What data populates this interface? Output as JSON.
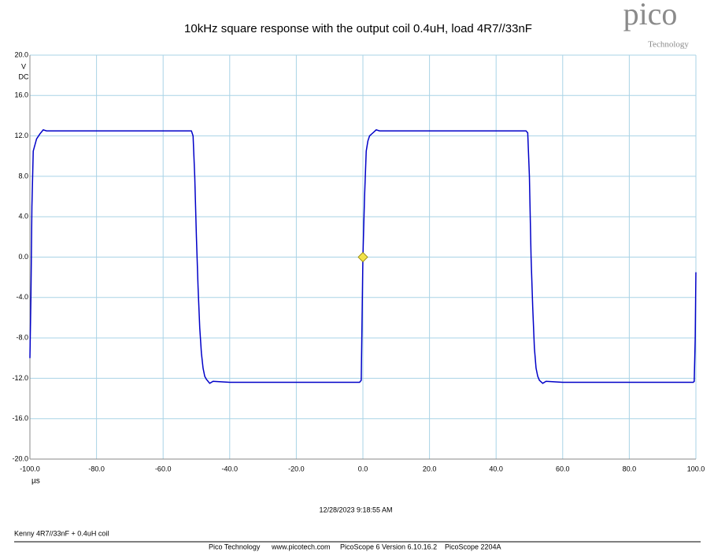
{
  "chart_data": {
    "type": "line",
    "title": "10kHz square response with the output coil 0.4uH, load 4R7//33nF",
    "y_unit": "V",
    "coupling": "DC",
    "x_unit": "µs",
    "color": "#0000c8",
    "grid": true,
    "x": [
      -100,
      -99.7,
      -99.4,
      -99,
      -98,
      -97,
      -96,
      -95,
      -90,
      -70,
      -51.5,
      -51,
      -50.5,
      -50,
      -49.5,
      -49,
      -48.5,
      -48,
      -47.5,
      -47,
      -46,
      -45,
      -40,
      -20,
      -1,
      -0.5,
      0,
      0.5,
      1,
      1.5,
      2,
      3,
      4,
      5,
      10,
      30,
      49,
      49.5,
      50,
      50.5,
      51,
      51.5,
      52,
      52.5,
      53,
      54,
      55,
      60,
      80,
      99.2,
      99.5,
      99.8,
      100
    ],
    "values": [
      -10,
      -4,
      5,
      10.5,
      11.7,
      12.2,
      12.6,
      12.5,
      12.5,
      12.5,
      12.5,
      12.0,
      8,
      2,
      -3,
      -7,
      -9.5,
      -11,
      -11.8,
      -12.1,
      -12.5,
      -12.3,
      -12.4,
      -12.4,
      -12.4,
      -12.2,
      0,
      6,
      10.5,
      11.5,
      12,
      12.3,
      12.6,
      12.5,
      12.5,
      12.5,
      12.5,
      12.3,
      8,
      0,
      -5,
      -9,
      -11,
      -11.8,
      -12.2,
      -12.5,
      -12.3,
      -12.4,
      -12.4,
      -12.4,
      -12.3,
      -8,
      -1.5
    ],
    "trigger_point": [
      0,
      0
    ],
    "xlim": [
      -100,
      100
    ],
    "xticks": [
      {
        "value": -100,
        "label": "-100.0"
      },
      {
        "value": -80,
        "label": "-80.0"
      },
      {
        "value": -60,
        "label": "-60.0"
      },
      {
        "value": -40,
        "label": "-40.0"
      },
      {
        "value": -20,
        "label": "-20.0"
      },
      {
        "value": 0,
        "label": "0.0"
      },
      {
        "value": 20,
        "label": "20.0"
      },
      {
        "value": 40,
        "label": "40.0"
      },
      {
        "value": 60,
        "label": "60.0"
      },
      {
        "value": 80,
        "label": "80.0"
      },
      {
        "value": 100,
        "label": "100.0"
      }
    ],
    "ylim": [
      -20,
      20
    ],
    "yticks": [
      {
        "value": -20,
        "label": "-20.0"
      },
      {
        "value": -16,
        "label": "-16.0"
      },
      {
        "value": -12,
        "label": "-12.0"
      },
      {
        "value": -8,
        "label": "-8.0"
      },
      {
        "value": -4,
        "label": "-4.0"
      },
      {
        "value": 0,
        "label": "0.0"
      },
      {
        "value": 4,
        "label": "4.0"
      },
      {
        "value": 8,
        "label": "8.0"
      },
      {
        "value": 12,
        "label": "12.0"
      },
      {
        "value": 16,
        "label": "16.0"
      },
      {
        "value": 20,
        "label": "20.0"
      }
    ]
  },
  "logo": {
    "name": "pico",
    "subtitle": "Technology"
  },
  "timestamp": "12/28/2023 9:18:55 AM",
  "caption": "Kenny 4R7//33nF + 0.4uH coil",
  "footer": [
    "Pico Technology",
    "www.picotech.com",
    "PicoScope 6 Version 6.10.16.2",
    "PicoScope 2204A"
  ]
}
